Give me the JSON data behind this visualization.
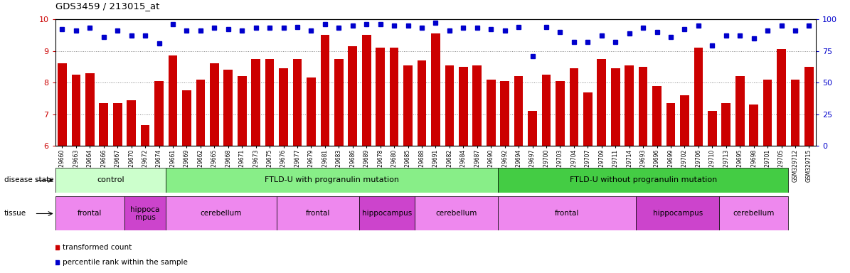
{
  "title": "GDS3459 / 213015_at",
  "samples": [
    "GSM329660",
    "GSM329663",
    "GSM329664",
    "GSM329666",
    "GSM329667",
    "GSM329670",
    "GSM329672",
    "GSM329674",
    "GSM329661",
    "GSM329669",
    "GSM329662",
    "GSM329665",
    "GSM329668",
    "GSM329671",
    "GSM329673",
    "GSM329675",
    "GSM329676",
    "GSM329677",
    "GSM329679",
    "GSM329681",
    "GSM329683",
    "GSM329686",
    "GSM329689",
    "GSM329678",
    "GSM329680",
    "GSM329685",
    "GSM329688",
    "GSM329691",
    "GSM329682",
    "GSM329684",
    "GSM329687",
    "GSM329690",
    "GSM329692",
    "GSM329694",
    "GSM329697",
    "GSM329700",
    "GSM329703",
    "GSM329704",
    "GSM329707",
    "GSM329709",
    "GSM329711",
    "GSM329714",
    "GSM329693",
    "GSM329696",
    "GSM329699",
    "GSM329702",
    "GSM329706",
    "GSM329710",
    "GSM329713",
    "GSM329695",
    "GSM329698",
    "GSM329701",
    "GSM329705",
    "GSM329712",
    "GSM329715"
  ],
  "bar_values": [
    8.6,
    8.25,
    8.3,
    7.35,
    7.35,
    7.45,
    6.65,
    8.05,
    8.85,
    7.75,
    8.1,
    8.6,
    8.4,
    8.2,
    8.75,
    8.75,
    8.45,
    8.75,
    8.15,
    9.5,
    8.75,
    9.15,
    9.5,
    9.1,
    9.1,
    8.55,
    8.7,
    9.55,
    8.55,
    8.5,
    8.55,
    8.1,
    8.05,
    8.2,
    7.1,
    8.25,
    8.05,
    8.45,
    7.7,
    8.75,
    8.45,
    8.55,
    8.5,
    7.9,
    7.35,
    7.6,
    9.1,
    7.1,
    7.35,
    8.2,
    7.3,
    8.1,
    9.05,
    8.1,
    8.5
  ],
  "percentile_values": [
    92,
    91,
    93,
    86,
    91,
    87,
    87,
    81,
    96,
    91,
    91,
    93,
    92,
    91,
    93,
    93,
    93,
    94,
    91,
    96,
    93,
    95,
    96,
    96,
    95,
    95,
    93,
    97,
    91,
    93,
    93,
    92,
    91,
    94,
    71,
    94,
    90,
    82,
    82,
    87,
    82,
    89,
    93,
    90,
    86,
    92,
    95,
    79,
    87,
    87,
    85,
    91,
    95,
    91,
    95
  ],
  "ylim_left": [
    6,
    10
  ],
  "ylim_right": [
    0,
    100
  ],
  "yticks_left": [
    6,
    7,
    8,
    9,
    10
  ],
  "yticks_right": [
    0,
    25,
    50,
    75,
    100
  ],
  "bar_color": "#CC0000",
  "dot_color": "#0000CC",
  "background_color": "#ffffff",
  "grid_color": "#888888",
  "disease_states": [
    {
      "label": "control",
      "start": 0,
      "end": 8,
      "color": "#ccffcc"
    },
    {
      "label": "FTLD-U with progranulin mutation",
      "start": 8,
      "end": 32,
      "color": "#88ee88"
    },
    {
      "label": "FTLD-U without progranulin mutation",
      "start": 32,
      "end": 53,
      "color": "#44cc44"
    }
  ],
  "tissues": [
    {
      "label": "frontal",
      "start": 0,
      "end": 5,
      "color": "#ee88ee"
    },
    {
      "label": "hippoca\nmpus",
      "start": 5,
      "end": 8,
      "color": "#cc44cc"
    },
    {
      "label": "cerebellum",
      "start": 8,
      "end": 16,
      "color": "#ee88ee"
    },
    {
      "label": "frontal",
      "start": 16,
      "end": 22,
      "color": "#ee88ee"
    },
    {
      "label": "hippocampus",
      "start": 22,
      "end": 26,
      "color": "#cc44cc"
    },
    {
      "label": "cerebellum",
      "start": 26,
      "end": 32,
      "color": "#ee88ee"
    },
    {
      "label": "frontal",
      "start": 32,
      "end": 42,
      "color": "#ee88ee"
    },
    {
      "label": "hippocampus",
      "start": 42,
      "end": 48,
      "color": "#cc44cc"
    },
    {
      "label": "cerebellum",
      "start": 48,
      "end": 53,
      "color": "#ee88ee"
    }
  ]
}
